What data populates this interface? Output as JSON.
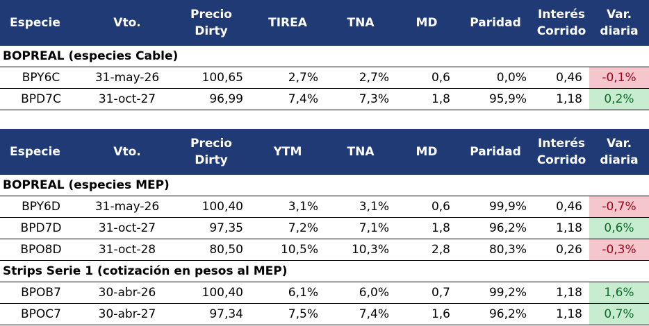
{
  "tables": [
    {
      "headers": [
        "Especie",
        "Vto.",
        "Precio Dirty",
        "TIREA",
        "TNA",
        "MD",
        "Paridad",
        "Interés Corrido",
        "Var. diaria"
      ],
      "sections": [
        {
          "title": "BOPREAL (especies Cable)",
          "rows": [
            {
              "especie": "BPY6C",
              "vto": "31-may-26",
              "precio": "100,65",
              "tir": "2,7%",
              "tna": "2,7%",
              "md": "0,6",
              "paridad": "0,0%",
              "interes": "0,46",
              "var": "-0,1%",
              "dir": "neg"
            },
            {
              "especie": "BPD7C",
              "vto": "31-oct-27",
              "precio": "96,99",
              "tir": "7,4%",
              "tna": "7,3%",
              "md": "1,8",
              "paridad": "95,9%",
              "interes": "1,18",
              "var": "0,2%",
              "dir": "pos"
            }
          ]
        }
      ]
    },
    {
      "headers": [
        "Especie",
        "Vto.",
        "Precio Dirty",
        "YTM",
        "TNA",
        "MD",
        "Paridad",
        "Interés Corrido",
        "Var. diaria"
      ],
      "sections": [
        {
          "title": "BOPREAL (especies MEP)",
          "rows": [
            {
              "especie": "BPY6D",
              "vto": "31-may-26",
              "precio": "100,40",
              "tir": "3,1%",
              "tna": "3,1%",
              "md": "0,6",
              "paridad": "99,9%",
              "interes": "0,46",
              "var": "-0,7%",
              "dir": "neg"
            },
            {
              "especie": "BPD7D",
              "vto": "31-oct-27",
              "precio": "97,35",
              "tir": "7,2%",
              "tna": "7,1%",
              "md": "1,8",
              "paridad": "96,2%",
              "interes": "1,18",
              "var": "0,6%",
              "dir": "pos"
            },
            {
              "especie": "BPO8D",
              "vto": "31-oct-28",
              "precio": "80,50",
              "tir": "10,5%",
              "tna": "10,3%",
              "md": "2,8",
              "paridad": "80,3%",
              "interes": "0,26",
              "var": "-0,3%",
              "dir": "neg"
            }
          ]
        },
        {
          "title": "Strips Serie 1 (cotización en pesos al MEP)",
          "rows": [
            {
              "especie": "BPOB7",
              "vto": "30-abr-26",
              "precio": "100,40",
              "tir": "6,1%",
              "tna": "6,0%",
              "md": "0,7",
              "paridad": "99,2%",
              "interes": "1,18",
              "var": "1,6%",
              "dir": "pos"
            },
            {
              "especie": "BPOC7",
              "vto": "30-abr-27",
              "precio": "97,34",
              "tir": "7,5%",
              "tna": "7,4%",
              "md": "1,6",
              "paridad": "96,2%",
              "interes": "1,18",
              "var": "0,7%",
              "dir": "pos"
            }
          ]
        }
      ]
    }
  ],
  "colors": {
    "header_bg": "#1f3a75",
    "negative_bg": "#f5c7cd",
    "positive_bg": "#c7ecd0"
  }
}
